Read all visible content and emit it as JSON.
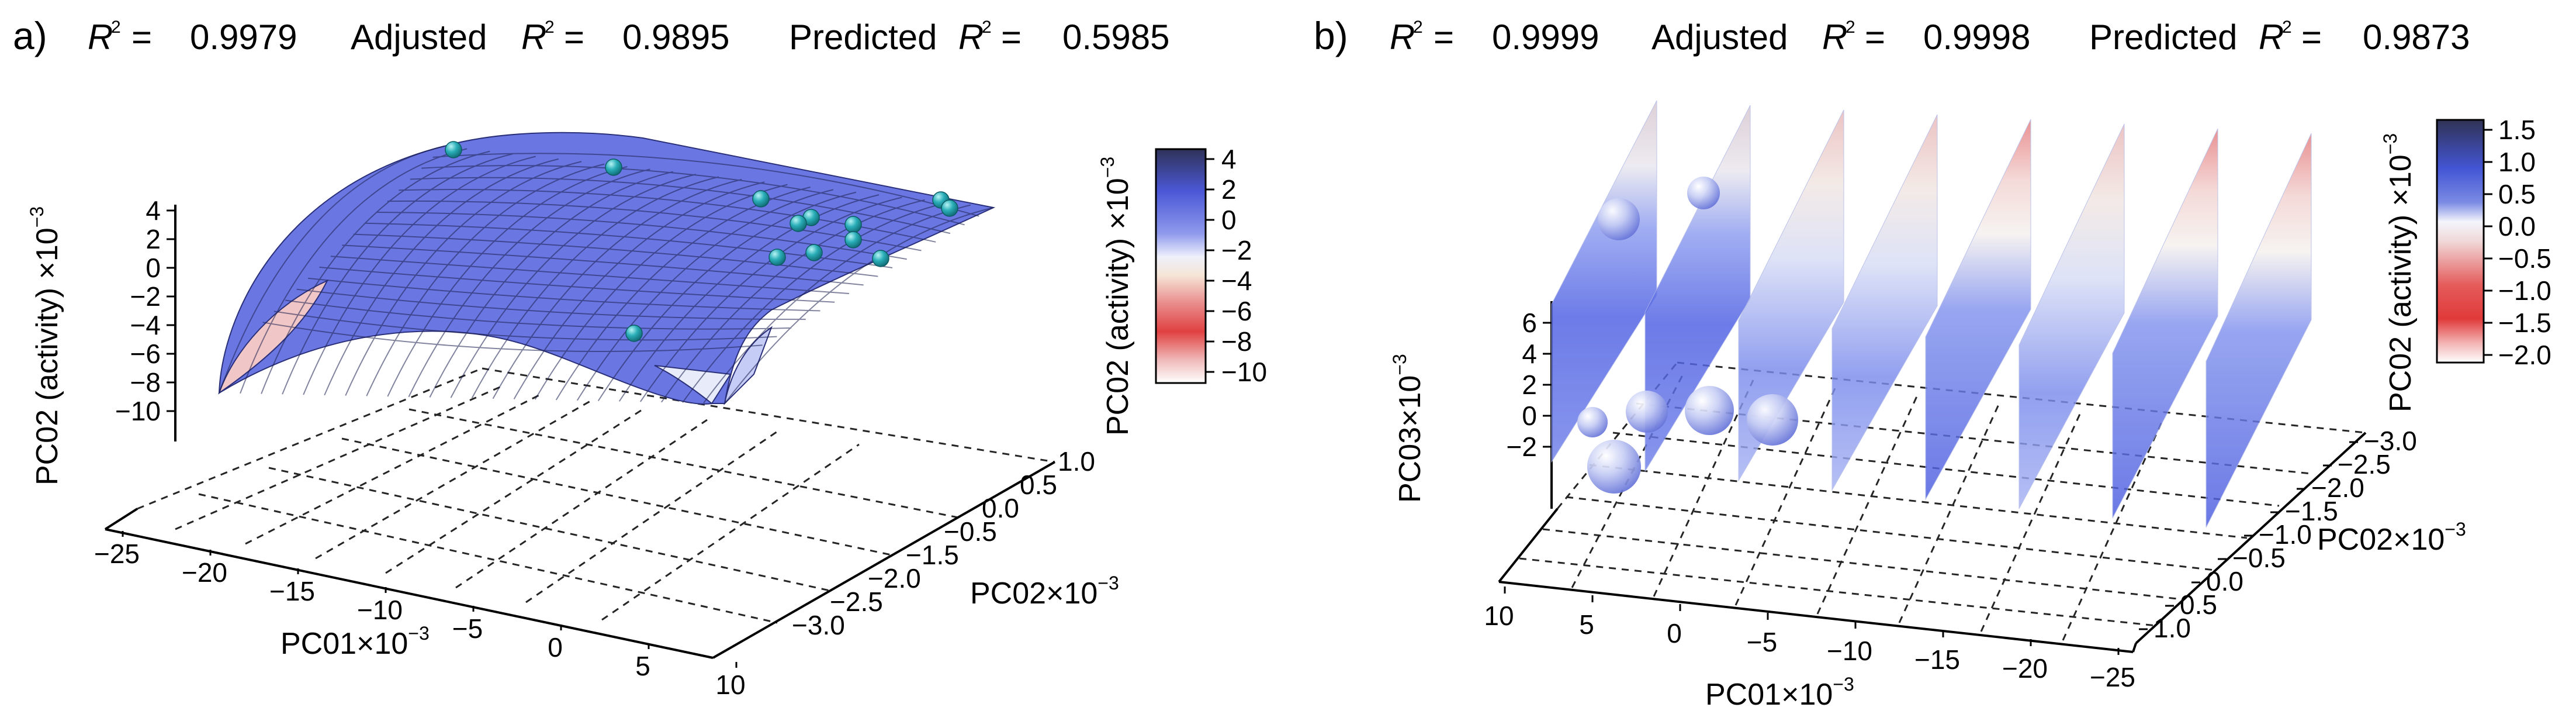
{
  "chart_data": [
    {
      "type": "surface3d",
      "panel_label": "a)",
      "stats": {
        "r2_label": "R",
        "r2_value": "0.9979",
        "adj_label": "Adjusted",
        "adj_r": "R",
        "adj_value": "0.9895",
        "pred_label": "Predicted",
        "pred_r": "R",
        "pred_value": "0.5985",
        "sup": "2",
        "eq": "="
      },
      "x_axis": {
        "label": "PC01×10",
        "exponent": "−3",
        "range": [
          -25,
          10
        ],
        "ticks": [
          -25,
          -20,
          -15,
          -10,
          -5,
          0,
          5,
          10
        ],
        "tick_labels": [
          "−25",
          "−20",
          "−15",
          "−10",
          "−5",
          "0",
          "5",
          "10"
        ]
      },
      "y_axis": {
        "label": "PC02×10",
        "exponent": "−3",
        "range": [
          -3.0,
          1.0
        ],
        "ticks": [
          -3.0,
          -2.5,
          -2.0,
          -1.5,
          -0.5,
          0.0,
          0.5,
          1.0
        ],
        "tick_labels": [
          "−3.0",
          "−2.5",
          "−2.0",
          "−1.5",
          "−0.5",
          "0.0",
          "0.5",
          "1.0"
        ]
      },
      "z_axis": {
        "label": "PC02 (activity) ×10",
        "exponent": "−3",
        "range": [
          -10,
          4
        ],
        "ticks": [
          4,
          2,
          0,
          -2,
          -4,
          -6,
          -8,
          -10
        ],
        "tick_labels": [
          "4",
          "2",
          "0",
          "−2",
          "−4",
          "−6",
          "−8",
          "−10"
        ]
      },
      "colorbar": {
        "label": "PC02 (activity) ×10",
        "exponent": "−3",
        "range": [
          -10,
          4
        ],
        "tick_labels": [
          "4",
          "2",
          "0",
          "−2",
          "−4",
          "−6",
          "−8",
          "−10"
        ],
        "colors": [
          "#3a3d78",
          "#5566e0",
          "#dfe3f8",
          "#f2c9c9",
          "#e14c4c",
          "#ffffff"
        ]
      },
      "points_count": 13
    },
    {
      "type": "slices3d",
      "panel_label": "b)",
      "stats": {
        "r2_label": "R",
        "r2_value": "0.9999",
        "adj_label": "Adjusted",
        "adj_r": "R",
        "adj_value": "0.9998",
        "pred_label": "Predicted",
        "pred_r": "R",
        "pred_value": "0.9873",
        "sup": "2",
        "eq": "="
      },
      "x_axis": {
        "label": "PC01×10",
        "exponent": "−3",
        "range": [
          10,
          -25
        ],
        "tick_labels": [
          "10",
          "5",
          "0",
          "−5",
          "−10",
          "−15",
          "−20",
          "−25"
        ]
      },
      "y_axis": {
        "label": "PC02×10",
        "exponent": "−3",
        "range": [
          -3.0,
          1.0
        ],
        "tick_labels": [
          "−3.0",
          "−2.5",
          "−2.0",
          "−1.5",
          "−1.0",
          "−0.5",
          "0.0",
          "0.5",
          "1.0"
        ]
      },
      "z_axis": {
        "label": "PC03×10",
        "exponent": "−3",
        "tick_labels": [
          "6",
          "4",
          "2",
          "0",
          "−2"
        ]
      },
      "colorbar": {
        "label": "PC02 (activity) ×10",
        "exponent": "−3",
        "range": [
          -2.0,
          1.5
        ],
        "tick_labels": [
          "1.5",
          "1.0",
          "0.5",
          "0.0",
          "−0.5",
          "−1.0",
          "−1.5",
          "−2.0"
        ],
        "colors": [
          "#34375e",
          "#4958d8",
          "#e9ecf7",
          "#f0d5d5",
          "#e84a4a",
          "#ffffff"
        ]
      },
      "slices_count": 8,
      "spheres_count": 7
    }
  ]
}
